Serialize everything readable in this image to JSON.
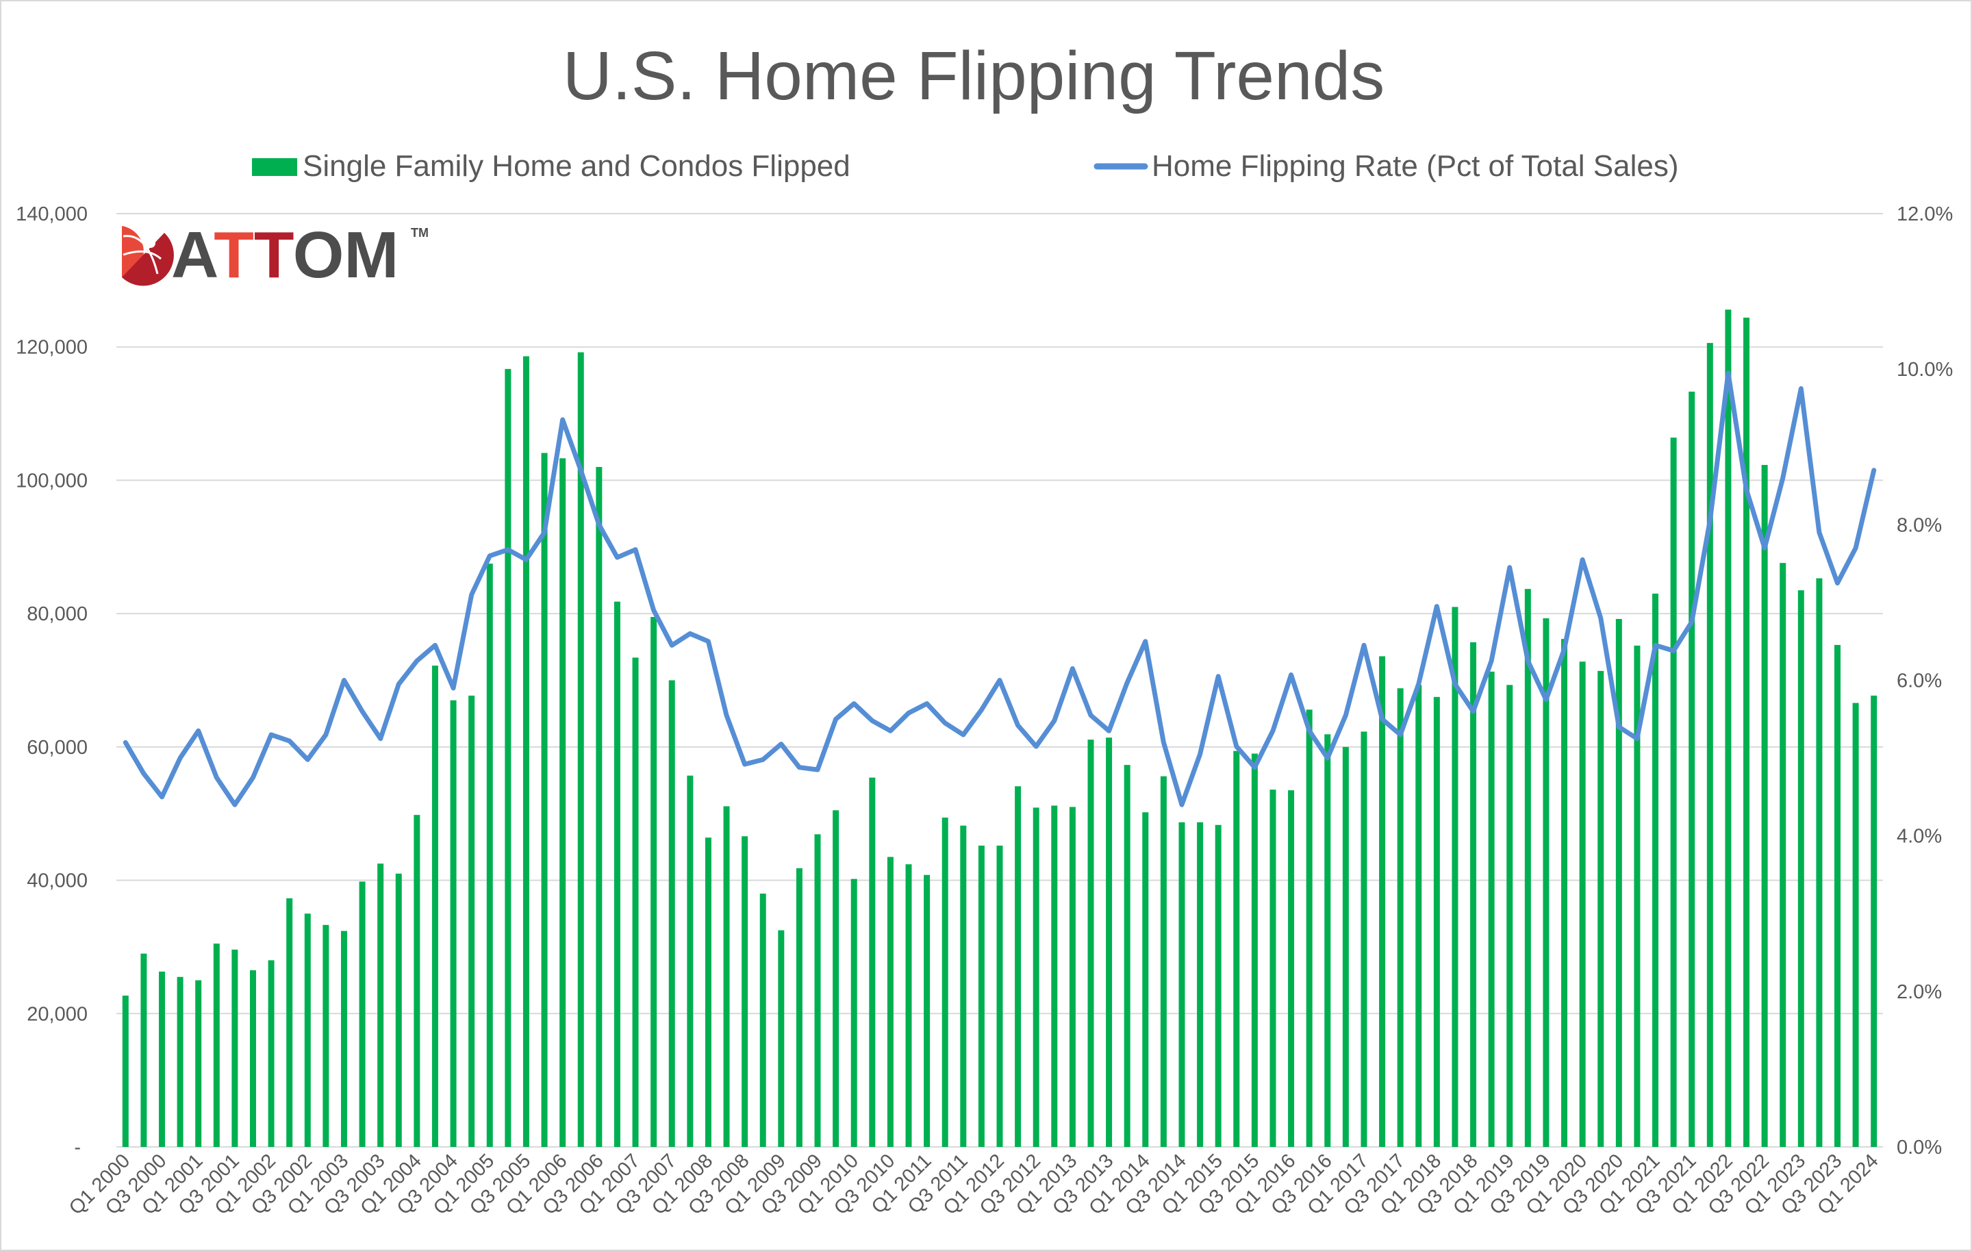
{
  "chart_data": {
    "type": "bar+line",
    "title": "U.S. Home Flipping Trends",
    "logo_text": "ATTOM",
    "legend_placement": "top",
    "grid": true,
    "colors": {
      "bars": "#00B050",
      "line": "#558ED5",
      "grid": "#d9d9d9",
      "text": "#595959"
    },
    "x_tick_labels": [
      "Q1 2000",
      "Q3 2000",
      "Q1 2001",
      "Q3 2001",
      "Q1 2002",
      "Q3 2002",
      "Q1 2003",
      "Q3 2003",
      "Q1 2004",
      "Q3 2004",
      "Q1 2005",
      "Q3 2005",
      "Q1 2006",
      "Q3 2006",
      "Q1 2007",
      "Q3 2007",
      "Q1 2008",
      "Q3 2008",
      "Q1 2009",
      "Q3 2009",
      "Q1 2010",
      "Q3 2010",
      "Q1 2011",
      "Q3 2011",
      "Q1 2012",
      "Q3 2012",
      "Q1 2013",
      "Q3 2013",
      "Q1 2014",
      "Q3 2014",
      "Q1 2015",
      "Q3 2015",
      "Q1 2016",
      "Q3 2016",
      "Q1 2017",
      "Q3 2017",
      "Q1 2018",
      "Q3 2018",
      "Q1 2019",
      "Q3 2019",
      "Q1 2020",
      "Q3 2020",
      "Q1 2021",
      "Q3 2021",
      "Q1 2022",
      "Q3 2022",
      "Q1 2023",
      "Q3 2023",
      "Q1 2024"
    ],
    "y_left": {
      "ticks": [
        "-",
        "20,000",
        "40,000",
        "60,000",
        "80,000",
        "100,000",
        "120,000",
        "140,000"
      ],
      "range": [
        0,
        140000
      ]
    },
    "y_right": {
      "ticks": [
        "0.0%",
        "2.0%",
        "4.0%",
        "6.0%",
        "8.0%",
        "10.0%",
        "12.0%"
      ],
      "range": [
        0,
        12
      ]
    },
    "series": [
      {
        "name": "Single Family Home and Condos Flipped",
        "type": "bar",
        "axis": "left",
        "values": [
          22700,
          29000,
          26300,
          25500,
          25000,
          30500,
          29600,
          26500,
          28000,
          37300,
          35000,
          33300,
          32400,
          39800,
          42500,
          41000,
          49800,
          72200,
          67000,
          67700,
          87500,
          116700,
          118600,
          104100,
          103300,
          119200,
          102000,
          81800,
          73400,
          79500,
          70000,
          55700,
          46400,
          51100,
          46600,
          38000,
          32500,
          41800,
          46900,
          50500,
          40200,
          55400,
          43500,
          42400,
          40800,
          49400,
          48200,
          45200,
          45200,
          54100,
          50900,
          51200,
          51000,
          61100,
          61400,
          57300,
          50200,
          55600,
          48700,
          48700,
          48300,
          59400,
          59000,
          53600,
          53500,
          65600,
          61900,
          60000,
          62300,
          73600,
          68800,
          69300,
          67500,
          81000,
          75700,
          71300,
          69300,
          83700,
          79300,
          76200,
          72800,
          71400,
          79200,
          75200,
          83000,
          106400,
          113300,
          120600,
          125600,
          124400,
          102300,
          87600,
          83500,
          85300,
          75300,
          66600,
          67700
        ]
      },
      {
        "name": "Home Flipping Rate (Pct of Total Sales)",
        "type": "line",
        "axis": "right",
        "values": [
          5.2,
          4.8,
          4.5,
          5.0,
          5.35,
          4.75,
          4.4,
          4.75,
          5.3,
          5.22,
          4.98,
          5.3,
          6.0,
          5.6,
          5.25,
          5.95,
          6.25,
          6.45,
          5.9,
          7.1,
          7.6,
          7.68,
          7.55,
          7.9,
          9.35,
          8.7,
          8.0,
          7.58,
          7.68,
          6.9,
          6.45,
          6.6,
          6.5,
          5.55,
          4.92,
          4.98,
          5.18,
          4.88,
          4.85,
          5.5,
          5.7,
          5.48,
          5.35,
          5.58,
          5.7,
          5.45,
          5.3,
          5.62,
          6.0,
          5.42,
          5.15,
          5.48,
          6.15,
          5.55,
          5.35,
          5.97,
          6.5,
          5.2,
          4.4,
          5.05,
          6.05,
          5.15,
          4.88,
          5.35,
          6.07,
          5.35,
          5.0,
          5.55,
          6.45,
          5.5,
          5.3,
          5.95,
          6.95,
          5.95,
          5.6,
          6.25,
          7.45,
          6.25,
          5.75,
          6.4,
          7.55,
          6.8,
          5.4,
          5.25,
          6.45,
          6.38,
          6.75,
          8.05,
          9.95,
          8.45,
          7.7,
          8.6,
          9.75,
          7.9,
          7.25,
          7.7,
          8.7
        ]
      }
    ]
  }
}
